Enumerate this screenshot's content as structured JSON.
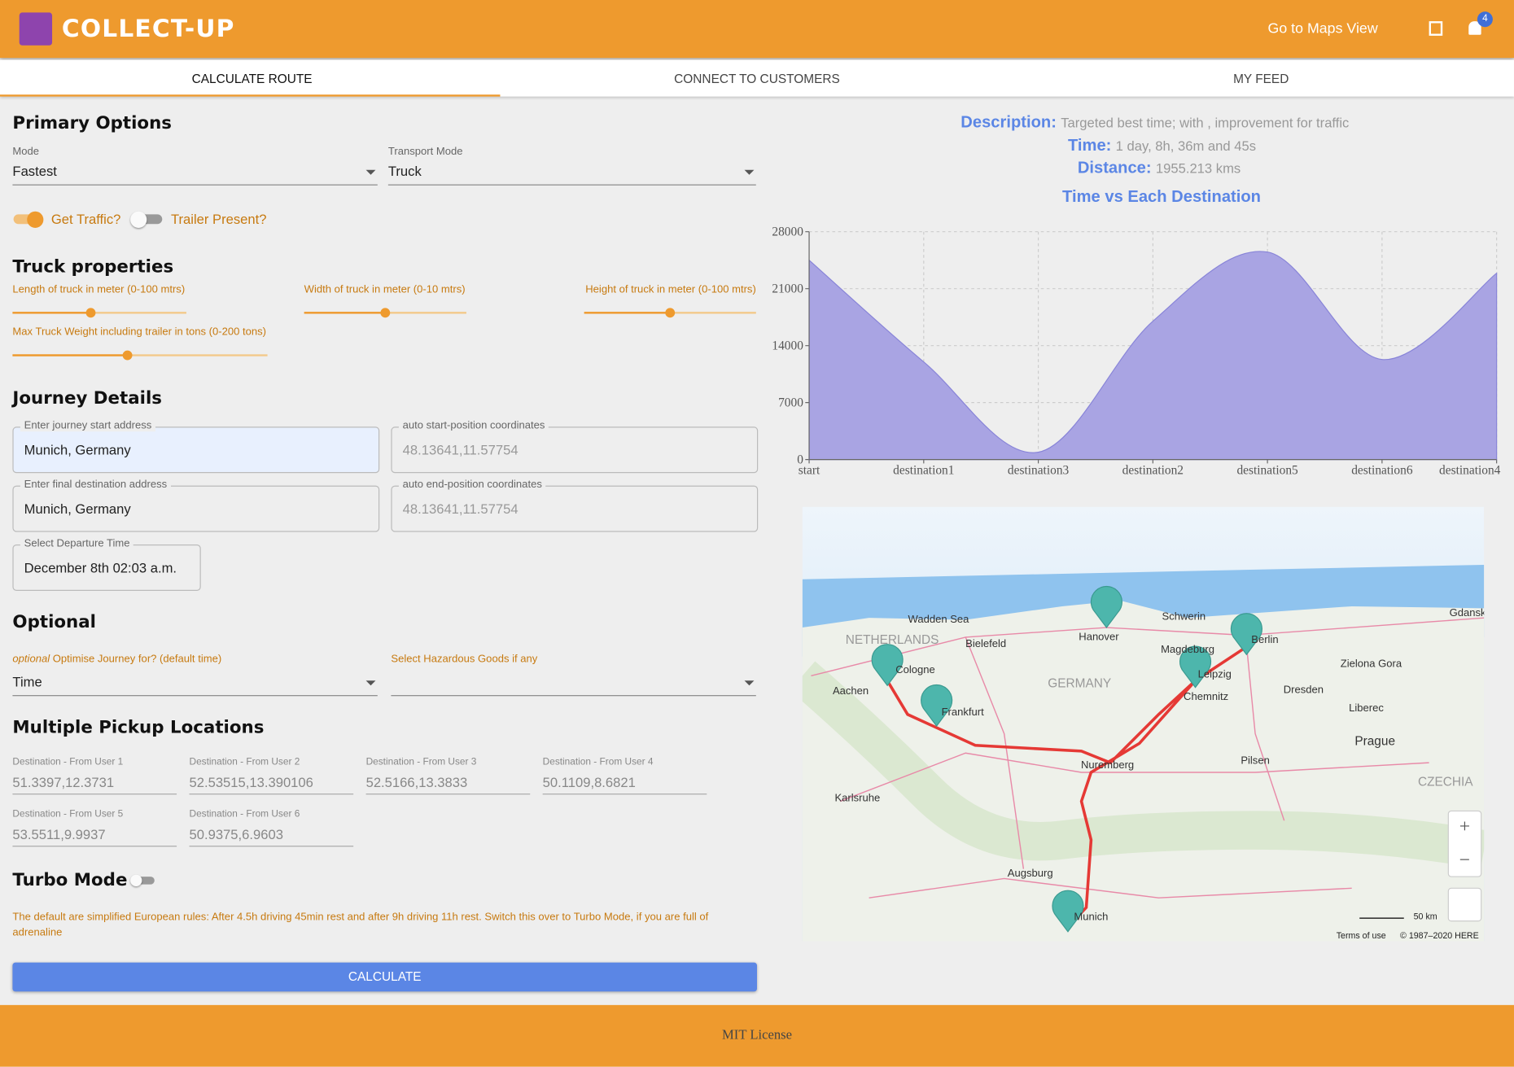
{
  "header": {
    "title": "COLLECT-UP",
    "link": "Go to Maps View",
    "badge": 4
  },
  "tabs": [
    "CALCULATE ROUTE",
    "CONNECT TO CUSTOMERS",
    "MY FEED"
  ],
  "primary": {
    "heading": "Primary Options",
    "mode_label": "Mode",
    "mode_value": "Fastest",
    "transport_label": "Transport Mode",
    "transport_value": "Truck",
    "traffic": "Get Traffic?",
    "trailer": "Trailer Present?"
  },
  "truck": {
    "heading": "Truck properties",
    "sliders": [
      {
        "label": "Length of truck in meter (0-100 mtrs)",
        "range": [
          0,
          100
        ],
        "value": 45
      },
      {
        "label": "Width of truck in meter (0-10 mtrs)",
        "range": [
          0,
          10
        ],
        "value": 5
      },
      {
        "label": "Height of truck in meter (0-100 mtrs)",
        "range": [
          0,
          100
        ],
        "value": 50
      },
      {
        "label": "Max Truck Weight including trailer in tons (0-200 tons)",
        "range": [
          0,
          200
        ],
        "value": 90
      }
    ]
  },
  "journey": {
    "heading": "Journey Details",
    "fields": [
      {
        "label": "Enter journey start address",
        "value": "Munich, Germany"
      },
      {
        "label": "auto start-position coordinates",
        "value": "48.13641,11.57754"
      },
      {
        "label": "Enter final destination address",
        "value": "Munich, Germany"
      },
      {
        "label": "auto end-position coordinates",
        "value": "48.13641,11.57754"
      },
      {
        "label": "Select Departure Time",
        "value": "December 8th 02:03 a.m."
      }
    ]
  },
  "optional": {
    "heading": "Optional",
    "prefix": "optional",
    "label": "Optimise Journey for? (default time)",
    "value": "Time",
    "hazard_label": "Select Hazardous Goods if any"
  },
  "pickups": {
    "heading": "Multiple Pickup Locations",
    "items": [
      {
        "label": "Destination - From User 1",
        "value": "51.3397,12.3731"
      },
      {
        "label": "Destination - From User 2",
        "value": "52.53515,13.390106"
      },
      {
        "label": "Destination - From User 3",
        "value": "52.5166,13.3833"
      },
      {
        "label": "Destination - From User 4",
        "value": "50.1109,8.6821"
      },
      {
        "label": "Destination - From User 5",
        "value": "53.5511,9.9937"
      },
      {
        "label": "Destination - From User 6",
        "value": "50.9375,6.9603"
      }
    ]
  },
  "turbo": {
    "heading": "Turbo Mode",
    "note": "The default are simplified European rules: After 4.5h driving 45min rest and after 9h driving 11h rest. Switch this over to Turbo Mode, if you are full of adrenaline"
  },
  "button": "CALCULATE",
  "summary": {
    "description_label": "Description:",
    "description": "Targeted best time; with , improvement for traffic",
    "time_label": "Time:",
    "time": "1 day, 8h, 36m and 45s",
    "distance_label": "Distance:",
    "distance": "1955.213 kms"
  },
  "chart_data": {
    "type": "area",
    "title": "Time vs Each Destination",
    "categories": [
      "start",
      "destination1",
      "destination3",
      "destination2",
      "destination5",
      "destination6",
      "destination4"
    ],
    "values": [
      24500,
      12000,
      900,
      17000,
      25500,
      12300,
      22900
    ],
    "color": "#a9a4e3",
    "ylim": [
      0,
      28000
    ],
    "yticks": [
      0,
      7000,
      14000,
      21000,
      28000
    ],
    "grid": true
  },
  "map": {
    "labels": [
      "NETHERLANDS",
      "Bielefeld",
      "Hanover",
      "Schwerin",
      "Berlin",
      "Magdeburg",
      "Leipzig",
      "GERMANY",
      "Cologne",
      "Aachen",
      "Frankfurt",
      "Chemnitz",
      "Dresden",
      "Liberec",
      "Prague",
      "Pilsen",
      "Nuremberg",
      "Karlsruhe",
      "CZECHIA",
      "Augsburg",
      "Munich",
      "Zielona Gora",
      "Gdansk",
      "Wadden Sea"
    ],
    "scale": "50 km",
    "terms": "Terms of use",
    "copyright": "© 1987–2020 HERE"
  },
  "footer": "MIT License"
}
